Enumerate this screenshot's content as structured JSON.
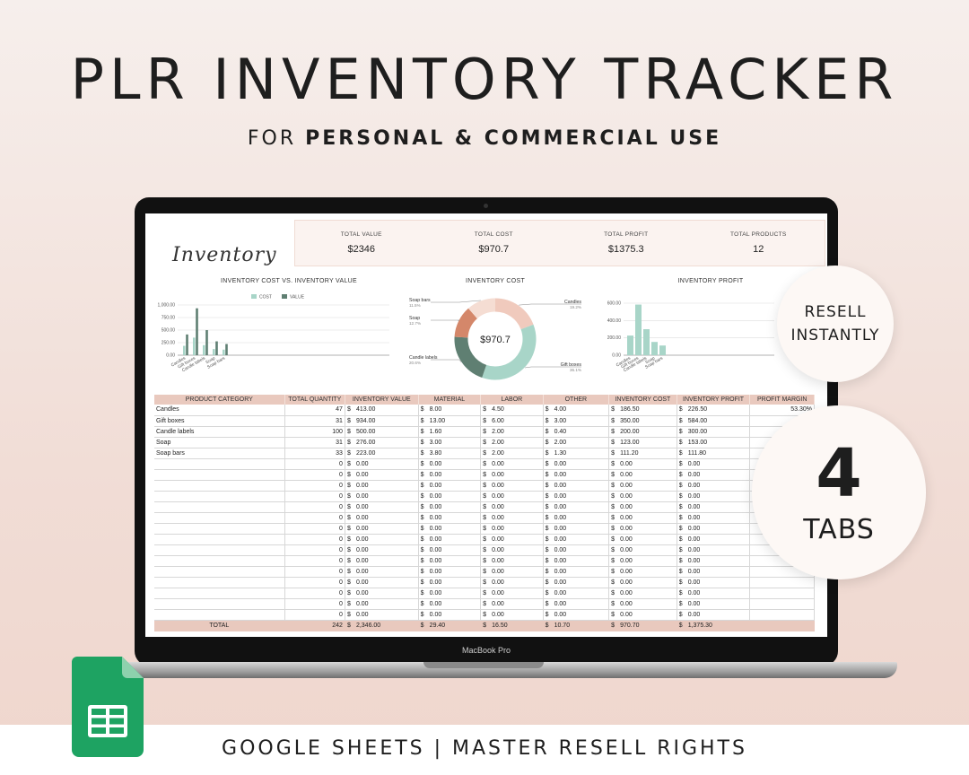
{
  "hero": {
    "title": "PLR INVENTORY TRACKER",
    "subtitle_prefix": "FOR",
    "subtitle_bold": "PERSONAL & COMMERCIAL USE"
  },
  "laptop": {
    "brand": "MacBook Pro"
  },
  "sheet": {
    "logo_text": "Inventory",
    "kpis": [
      {
        "label": "TOTAL VALUE",
        "value": "$2346"
      },
      {
        "label": "TOTAL COST",
        "value": "$970.7"
      },
      {
        "label": "TOTAL PROFIT",
        "value": "$1375.3"
      },
      {
        "label": "TOTAL PRODUCTS",
        "value": "12"
      }
    ],
    "table": {
      "headers": [
        "PRODUCT CATEGORY",
        "TOTAL QUANTITY",
        "INVENTORY VALUE",
        "MATERIAL",
        "LABOR",
        "OTHER",
        "INVENTORY COST",
        "INVENTORY PROFIT",
        "PROFIT MARGIN"
      ],
      "rows": [
        [
          "Candles",
          "47",
          "413.00",
          "8.00",
          "4.50",
          "4.00",
          "186.50",
          "226.50",
          "53.30%"
        ],
        [
          "Gift boxes",
          "31",
          "934.00",
          "13.00",
          "6.00",
          "3.00",
          "350.00",
          "584.00",
          "63.1"
        ],
        [
          "Candle labels",
          "100",
          "500.00",
          "1.60",
          "2.00",
          "0.40",
          "200.00",
          "300.00",
          ""
        ],
        [
          "Soap",
          "31",
          "276.00",
          "3.00",
          "2.00",
          "2.00",
          "123.00",
          "153.00",
          ""
        ],
        [
          "Soap bars",
          "33",
          "223.00",
          "3.80",
          "2.00",
          "1.30",
          "111.20",
          "111.80",
          ""
        ],
        [
          "",
          "0",
          "0.00",
          "0.00",
          "0.00",
          "0.00",
          "0.00",
          "0.00",
          ""
        ],
        [
          "",
          "0",
          "0.00",
          "0.00",
          "0.00",
          "0.00",
          "0.00",
          "0.00",
          ""
        ],
        [
          "",
          "0",
          "0.00",
          "0.00",
          "0.00",
          "0.00",
          "0.00",
          "0.00",
          ""
        ],
        [
          "",
          "0",
          "0.00",
          "0.00",
          "0.00",
          "0.00",
          "0.00",
          "0.00",
          ""
        ],
        [
          "",
          "0",
          "0.00",
          "0.00",
          "0.00",
          "0.00",
          "0.00",
          "0.00",
          ""
        ],
        [
          "",
          "0",
          "0.00",
          "0.00",
          "0.00",
          "0.00",
          "0.00",
          "0.00",
          ""
        ],
        [
          "",
          "0",
          "0.00",
          "0.00",
          "0.00",
          "0.00",
          "0.00",
          "0.00",
          ""
        ],
        [
          "",
          "0",
          "0.00",
          "0.00",
          "0.00",
          "0.00",
          "0.00",
          "0.00",
          ""
        ],
        [
          "",
          "0",
          "0.00",
          "0.00",
          "0.00",
          "0.00",
          "0.00",
          "0.00",
          ""
        ],
        [
          "",
          "0",
          "0.00",
          "0.00",
          "0.00",
          "0.00",
          "0.00",
          "0.00",
          ""
        ],
        [
          "",
          "0",
          "0.00",
          "0.00",
          "0.00",
          "0.00",
          "0.00",
          "0.00",
          ""
        ],
        [
          "",
          "0",
          "0.00",
          "0.00",
          "0.00",
          "0.00",
          "0.00",
          "0.00",
          ""
        ],
        [
          "",
          "0",
          "0.00",
          "0.00",
          "0.00",
          "0.00",
          "0.00",
          "0.00",
          ""
        ],
        [
          "",
          "0",
          "0.00",
          "0.00",
          "0.00",
          "0.00",
          "0.00",
          "0.00",
          ""
        ],
        [
          "",
          "0",
          "0.00",
          "0.00",
          "0.00",
          "0.00",
          "0.00",
          "0.00",
          ""
        ]
      ],
      "total_row": [
        "TOTAL",
        "242",
        "2,346.00",
        "29.40",
        "16.50",
        "10.70",
        "970.70",
        "1,375.30",
        ""
      ],
      "currency_symbol": "$"
    },
    "colors": {
      "accent_pink": "#e9c9be",
      "cost_green_light": "#a8d5c8",
      "value_green_dark": "#5f7f72",
      "profit_green": "#a8d5c8"
    }
  },
  "chart_data": [
    {
      "type": "bar",
      "title": "INVENTORY COST VS. INVENTORY VALUE",
      "categories": [
        "Candles",
        "Gift boxes",
        "Candle labels",
        "Soap",
        "Soap bars"
      ],
      "series": [
        {
          "name": "COST",
          "values": [
            186.5,
            350,
            200,
            123,
            111.2
          ]
        },
        {
          "name": "VALUE",
          "values": [
            413,
            934,
            500,
            276,
            223
          ]
        }
      ],
      "ylim": [
        0,
        1000
      ],
      "yticks": [
        "0.00",
        "250.00",
        "500.00",
        "750.00",
        "1,000.00"
      ],
      "legend": "top"
    },
    {
      "type": "pie",
      "title": "INVENTORY COST",
      "center_label": "$970.7",
      "labels": [
        "Candles",
        "Gift boxes",
        "Candle labels",
        "Soap",
        "Soap bars"
      ],
      "values": [
        186.5,
        350,
        200,
        123,
        111.2
      ],
      "percent_labels": [
        "19.2%",
        "36.1%",
        "20.6%",
        "12.7%",
        "11.5%"
      ],
      "colors": [
        "#f0cabd",
        "#a8d5c8",
        "#5f7f72",
        "#d4876a",
        "#f5ddd3"
      ]
    },
    {
      "type": "bar",
      "title": "INVENTORY PROFIT",
      "categories": [
        "Candles",
        "Gift boxes",
        "Candle labels",
        "Soap",
        "Soap bars"
      ],
      "values": [
        226.5,
        584,
        300,
        153,
        111.8
      ],
      "ylim": [
        0,
        600
      ],
      "yticks": [
        "0.00",
        "200.00",
        "400.00",
        "600.00"
      ]
    }
  ],
  "badges": {
    "resell_line1": "RESELL",
    "resell_line2": "INSTANTLY",
    "tabs_number": "4",
    "tabs_label": "TABS"
  },
  "footer": {
    "text": "GOOGLE SHEETS | MASTER RESELL RIGHTS"
  }
}
